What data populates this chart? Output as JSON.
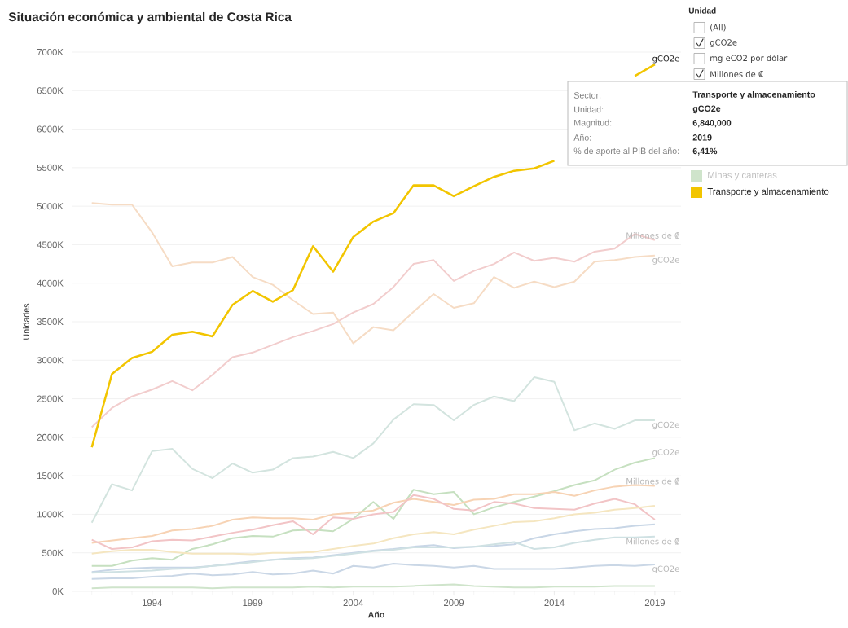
{
  "chart_data": {
    "type": "line",
    "title": "Situación económica y ambiental de Costa Rica",
    "xlabel": "Año",
    "ylabel": "Unidades",
    "x": [
      1991,
      1992,
      1993,
      1994,
      1995,
      1996,
      1997,
      1998,
      1999,
      2000,
      2001,
      2002,
      2003,
      2004,
      2005,
      2006,
      2007,
      2008,
      2009,
      2010,
      2011,
      2012,
      2013,
      2014,
      2015,
      2016,
      2017,
      2018,
      2019
    ],
    "xlim": [
      1990,
      2020.3
    ],
    "xticks": [
      1994,
      1999,
      2004,
      2009,
      2014,
      2019
    ],
    "ylim": [
      0,
      7000
    ],
    "yticks": [
      {
        "value": 0,
        "label": "0K"
      },
      {
        "value": 500,
        "label": "500K"
      },
      {
        "value": 1000,
        "label": "1000K"
      },
      {
        "value": 1500,
        "label": "1500K"
      },
      {
        "value": 2000,
        "label": "2000K"
      },
      {
        "value": 2500,
        "label": "2500K"
      },
      {
        "value": 3000,
        "label": "3000K"
      },
      {
        "value": 3500,
        "label": "3500K"
      },
      {
        "value": 4000,
        "label": "4000K"
      },
      {
        "value": 4500,
        "label": "4500K"
      },
      {
        "value": 5000,
        "label": "5000K"
      },
      {
        "value": 5500,
        "label": "5500K"
      },
      {
        "value": 6000,
        "label": "6000K"
      },
      {
        "value": 6500,
        "label": "6500K"
      },
      {
        "value": 7000,
        "label": "7000K"
      }
    ],
    "grid": "y",
    "legend": "right",
    "series": [
      {
        "color": "#f2cdcd",
        "values": [
          2130,
          2380,
          2530,
          2620,
          2730,
          2610,
          2810,
          3040,
          3100,
          3200,
          3300,
          3380,
          3470,
          3620,
          3730,
          3950,
          4250,
          4300,
          4030,
          4160,
          4250,
          4400,
          4290,
          4330,
          4280,
          4410,
          4450,
          4640,
          4560
        ]
      },
      {
        "color": "#f6dcc5",
        "values": [
          5040,
          5020,
          5020,
          4660,
          4220,
          4270,
          4270,
          4340,
          4080,
          3980,
          3780,
          3600,
          3620,
          3220,
          3430,
          3390,
          3630,
          3860,
          3680,
          3740,
          4080,
          3940,
          4020,
          3950,
          4020,
          4280,
          4300,
          4340,
          4360
        ]
      },
      {
        "color": "#d3e4df",
        "values": [
          890,
          1390,
          1310,
          1820,
          1850,
          1590,
          1470,
          1660,
          1540,
          1580,
          1730,
          1750,
          1810,
          1730,
          1920,
          2230,
          2430,
          2420,
          2220,
          2420,
          2530,
          2470,
          2780,
          2720,
          2090,
          2180,
          2110,
          2220,
          2220
        ]
      },
      {
        "color": "#c6e0c0",
        "values": [
          330,
          330,
          400,
          430,
          410,
          550,
          610,
          690,
          720,
          710,
          790,
          800,
          780,
          940,
          1160,
          940,
          1320,
          1260,
          1290,
          1000,
          1090,
          1160,
          1230,
          1300,
          1380,
          1440,
          1580,
          1670,
          1730
        ]
      },
      {
        "color": "#f7d3b4",
        "values": [
          630,
          660,
          690,
          720,
          790,
          810,
          850,
          930,
          960,
          950,
          950,
          930,
          1000,
          1020,
          1050,
          1150,
          1200,
          1160,
          1120,
          1190,
          1200,
          1260,
          1260,
          1290,
          1240,
          1310,
          1360,
          1380,
          1370
        ]
      },
      {
        "color": "#f2c4c6",
        "values": [
          670,
          550,
          570,
          650,
          670,
          660,
          710,
          760,
          800,
          860,
          910,
          740,
          960,
          940,
          1000,
          1030,
          1250,
          1200,
          1070,
          1050,
          1160,
          1140,
          1080,
          1070,
          1060,
          1140,
          1200,
          1130,
          930
        ]
      },
      {
        "color": "#f5e6c0",
        "values": [
          490,
          520,
          540,
          540,
          510,
          490,
          490,
          490,
          480,
          500,
          500,
          510,
          550,
          590,
          620,
          690,
          740,
          770,
          740,
          800,
          850,
          900,
          910,
          950,
          1000,
          1020,
          1060,
          1080,
          1110
        ]
      },
      {
        "color": "#c8d6e6",
        "values": [
          250,
          280,
          300,
          310,
          310,
          310,
          330,
          360,
          390,
          410,
          430,
          440,
          470,
          500,
          530,
          550,
          580,
          600,
          560,
          580,
          590,
          610,
          690,
          740,
          780,
          810,
          820,
          850,
          870
        ]
      },
      {
        "color": "#cfe1e3",
        "values": [
          240,
          250,
          260,
          270,
          290,
          300,
          330,
          350,
          380,
          410,
          420,
          430,
          460,
          490,
          520,
          540,
          570,
          570,
          570,
          580,
          610,
          640,
          550,
          570,
          630,
          670,
          700,
          700,
          710
        ]
      },
      {
        "color": "#cad7e6",
        "values": [
          160,
          170,
          170,
          190,
          200,
          230,
          210,
          220,
          250,
          220,
          230,
          270,
          230,
          330,
          310,
          360,
          340,
          330,
          310,
          330,
          290,
          290,
          290,
          290,
          310,
          330,
          340,
          330,
          350
        ]
      },
      {
        "name": "Minas y canteras",
        "color": "#cfe4cb",
        "values": [
          40,
          50,
          50,
          50,
          50,
          50,
          40,
          50,
          50,
          50,
          50,
          60,
          50,
          60,
          60,
          60,
          70,
          80,
          90,
          70,
          60,
          50,
          50,
          60,
          60,
          60,
          70,
          70,
          70
        ]
      },
      {
        "name": "Transporte y almacenamiento",
        "color": "#f2c500",
        "values": [
          1870,
          2820,
          3030,
          3110,
          3330,
          3370,
          3310,
          3720,
          3900,
          3760,
          3910,
          4480,
          4150,
          4600,
          4800,
          4910,
          5270,
          5270,
          5130,
          5260,
          5380,
          5460,
          5490,
          5590,
          null,
          null,
          null,
          6690,
          6840
        ]
      }
    ],
    "annotations": [
      "Unidad",
      "(All)",
      "gCO2e",
      "mg eCO2 por dólar",
      "Millones de ₡",
      "Sector:",
      "Transporte y almacenamiento",
      "Unidad:",
      "gCO2e",
      "Magnitud:",
      "6,840,000",
      "Año:",
      "2019",
      "% de aporte al PIB del año:",
      "6,41%",
      "gCO2e",
      "Millones de ₡",
      "gCO2e",
      "gCO2e",
      "gCO2e",
      "Millones de ₡",
      "Millones de ₡",
      "gCO2e"
    ]
  }
}
